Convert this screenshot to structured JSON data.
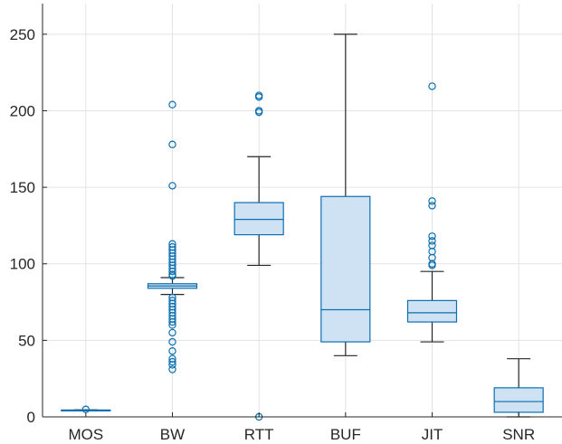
{
  "chart_data": {
    "type": "box",
    "title": "",
    "xlabel": "",
    "ylabel": "",
    "ylim": [
      0,
      270
    ],
    "yticks": [
      0,
      50,
      100,
      150,
      200,
      250
    ],
    "grid": true,
    "categories": [
      "MOS",
      "BW",
      "RTT",
      "BUF",
      "JIT",
      "SNR"
    ],
    "boxes": [
      {
        "name": "MOS",
        "whisker_low": 4.2,
        "q1": 4.3,
        "median": 4.4,
        "q3": 4.5,
        "whisker_high": 4.6,
        "outliers": [
          4.9
        ]
      },
      {
        "name": "BW",
        "whisker_low": 80,
        "q1": 84,
        "median": 85.5,
        "q3": 87,
        "whisker_high": 91,
        "outliers": [
          204,
          178,
          151,
          113,
          111,
          109,
          107,
          105,
          103,
          101,
          99,
          97,
          95,
          93,
          92,
          78,
          76,
          74,
          72,
          70,
          68,
          66,
          64,
          62,
          60,
          55,
          49,
          43,
          38,
          36,
          34,
          31
        ]
      },
      {
        "name": "RTT",
        "whisker_low": 99,
        "q1": 119,
        "median": 129,
        "q3": 140,
        "whisker_high": 170,
        "outliers": [
          210,
          209,
          200,
          199,
          0
        ]
      },
      {
        "name": "BUF",
        "whisker_low": 40,
        "q1": 49,
        "median": 70,
        "q3": 144,
        "whisker_high": 250,
        "outliers": []
      },
      {
        "name": "JIT",
        "whisker_low": 49,
        "q1": 62,
        "median": 68,
        "q3": 76,
        "whisker_high": 95,
        "outliers": [
          216,
          141,
          138,
          118,
          115,
          112,
          108,
          104,
          100,
          99
        ]
      },
      {
        "name": "SNR",
        "whisker_low": 0,
        "q1": 3,
        "median": 10,
        "q3": 19,
        "whisker_high": 38,
        "outliers": []
      }
    ],
    "colors": {
      "box_fill": "#cfe2f3",
      "box_edge": "#0b6fb0",
      "whisker": "#262626",
      "grid": "#e3e3e3"
    }
  }
}
